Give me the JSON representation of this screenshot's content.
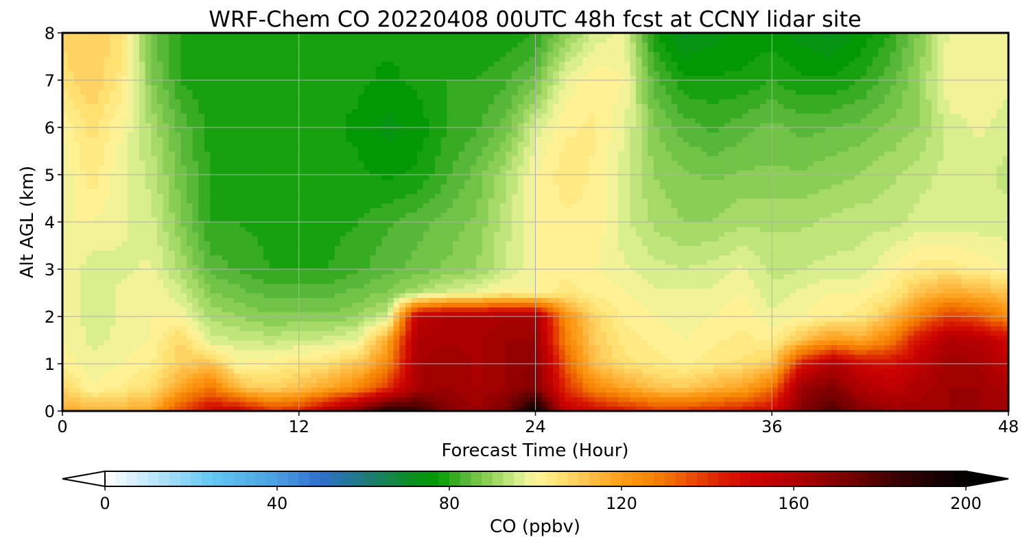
{
  "chart_data": {
    "type": "heatmap",
    "title": "WRF-Chem CO  20220408 00UTC 48h fcst at CCNY lidar site",
    "xlabel": "Forecast Time (Hour)",
    "ylabel": "Alt AGL (km)",
    "xlim": [
      0,
      48
    ],
    "ylim": [
      0,
      8
    ],
    "x_ticks": [
      "0",
      "12",
      "24",
      "36",
      "48"
    ],
    "y_ticks": [
      "0",
      "1",
      "2",
      "3",
      "4",
      "5",
      "6",
      "7",
      "8"
    ],
    "grid": true,
    "x_hours": [
      0,
      1.5,
      3,
      4.5,
      6,
      7.5,
      9,
      10.5,
      12,
      13.5,
      15,
      16.5,
      18,
      19.5,
      21,
      22.5,
      24,
      25.5,
      27,
      28.5,
      30,
      31.5,
      33,
      34.5,
      36,
      37.5,
      39,
      40.5,
      42,
      43.5,
      45,
      46.5,
      48
    ],
    "y_km": [
      0,
      0.5,
      1,
      1.5,
      2,
      2.5,
      3,
      4,
      5,
      6,
      7,
      8
    ],
    "values_ppbv": [
      [
        118,
        115,
        116,
        118,
        138,
        150,
        152,
        140,
        142,
        158,
        172,
        190,
        185,
        170,
        165,
        172,
        198,
        155,
        150,
        145,
        140,
        140,
        142,
        145,
        150,
        170,
        180,
        170,
        165,
        165,
        165,
        165,
        165
      ],
      [
        108,
        100,
        103,
        106,
        118,
        130,
        112,
        108,
        112,
        118,
        125,
        140,
        162,
        165,
        162,
        165,
        170,
        142,
        125,
        118,
        112,
        110,
        115,
        118,
        130,
        165,
        170,
        160,
        155,
        160,
        165,
        165,
        160
      ],
      [
        102,
        98,
        100,
        102,
        110,
        112,
        100,
        102,
        104,
        106,
        112,
        125,
        162,
        165,
        162,
        165,
        168,
        135,
        112,
        106,
        104,
        102,
        104,
        106,
        110,
        145,
        160,
        150,
        148,
        155,
        165,
        162,
        155
      ],
      [
        100,
        97,
        98,
        100,
        108,
        96,
        95,
        94,
        95,
        96,
        98,
        118,
        160,
        162,
        162,
        165,
        165,
        128,
        110,
        104,
        102,
        100,
        102,
        103,
        102,
        112,
        122,
        118,
        128,
        148,
        160,
        158,
        150
      ],
      [
        100,
        96,
        98,
        100,
        100,
        92,
        90,
        88,
        88,
        88,
        90,
        95,
        155,
        160,
        160,
        162,
        162,
        125,
        108,
        102,
        100,
        98,
        100,
        102,
        98,
        100,
        102,
        104,
        112,
        128,
        140,
        135,
        125
      ],
      [
        100,
        96,
        98,
        100,
        96,
        88,
        86,
        84,
        84,
        84,
        86,
        88,
        92,
        96,
        98,
        102,
        100,
        104,
        102,
        100,
        98,
        98,
        98,
        100,
        96,
        98,
        100,
        100,
        104,
        112,
        118,
        115,
        112
      ],
      [
        100,
        96,
        97,
        98,
        92,
        84,
        82,
        80,
        80,
        80,
        82,
        84,
        86,
        88,
        90,
        95,
        100,
        102,
        100,
        98,
        96,
        95,
        96,
        98,
        94,
        95,
        96,
        96,
        100,
        104,
        104,
        102,
        100
      ],
      [
        100,
        100,
        98,
        96,
        88,
        80,
        80,
        79,
        79,
        79,
        80,
        82,
        84,
        86,
        88,
        94,
        100,
        102,
        102,
        96,
        92,
        90,
        90,
        92,
        92,
        92,
        93,
        94,
        94,
        96,
        96,
        96,
        96
      ],
      [
        98,
        104,
        98,
        94,
        86,
        80,
        79,
        78,
        78,
        78,
        78,
        77,
        78,
        82,
        86,
        92,
        100,
        104,
        102,
        96,
        90,
        88,
        87,
        88,
        88,
        88,
        89,
        90,
        92,
        94,
        96,
        96,
        94
      ],
      [
        100,
        106,
        100,
        92,
        84,
        79,
        78,
        78,
        78,
        78,
        77,
        74,
        76,
        80,
        82,
        86,
        96,
        102,
        103,
        98,
        88,
        84,
        82,
        84,
        86,
        84,
        85,
        86,
        88,
        90,
        96,
        98,
        96
      ],
      [
        106,
        110,
        104,
        88,
        80,
        78,
        78,
        78,
        78,
        78,
        78,
        77,
        78,
        80,
        80,
        82,
        86,
        98,
        102,
        100,
        84,
        78,
        78,
        78,
        80,
        78,
        78,
        80,
        84,
        90,
        100,
        100,
        98
      ],
      [
        108,
        110,
        106,
        86,
        80,
        78,
        78,
        78,
        78,
        78,
        78,
        78,
        78,
        78,
        78,
        78,
        80,
        88,
        96,
        98,
        78,
        72,
        74,
        76,
        76,
        74,
        72,
        76,
        80,
        88,
        98,
        100,
        98
      ]
    ],
    "colorbar": {
      "label": "CO  (ppbv)",
      "min": 0,
      "max": 200,
      "ticks": [
        "0",
        "40",
        "80",
        "120",
        "160",
        "200"
      ],
      "extend": "both",
      "levels": 80
    },
    "colormap_stops": [
      {
        "v": 0,
        "c": "#ffffff"
      },
      {
        "v": 10,
        "c": "#c4e9fb"
      },
      {
        "v": 25,
        "c": "#63c6f2"
      },
      {
        "v": 40,
        "c": "#4a9fe0"
      },
      {
        "v": 50,
        "c": "#2f6fcc"
      },
      {
        "v": 60,
        "c": "#1e7a7f"
      },
      {
        "v": 70,
        "c": "#0f8c2a"
      },
      {
        "v": 77,
        "c": "#009900"
      },
      {
        "v": 84,
        "c": "#5ab83a"
      },
      {
        "v": 90,
        "c": "#98d45e"
      },
      {
        "v": 96,
        "c": "#d6ef8c"
      },
      {
        "v": 100,
        "c": "#fff59d"
      },
      {
        "v": 106,
        "c": "#ffe173"
      },
      {
        "v": 112,
        "c": "#ffc24d"
      },
      {
        "v": 120,
        "c": "#ff9e1a"
      },
      {
        "v": 128,
        "c": "#f58000"
      },
      {
        "v": 136,
        "c": "#e85000"
      },
      {
        "v": 144,
        "c": "#d81a00"
      },
      {
        "v": 152,
        "c": "#c80000"
      },
      {
        "v": 162,
        "c": "#a80000"
      },
      {
        "v": 172,
        "c": "#7a0000"
      },
      {
        "v": 184,
        "c": "#3a0000"
      },
      {
        "v": 200,
        "c": "#000000"
      }
    ]
  }
}
